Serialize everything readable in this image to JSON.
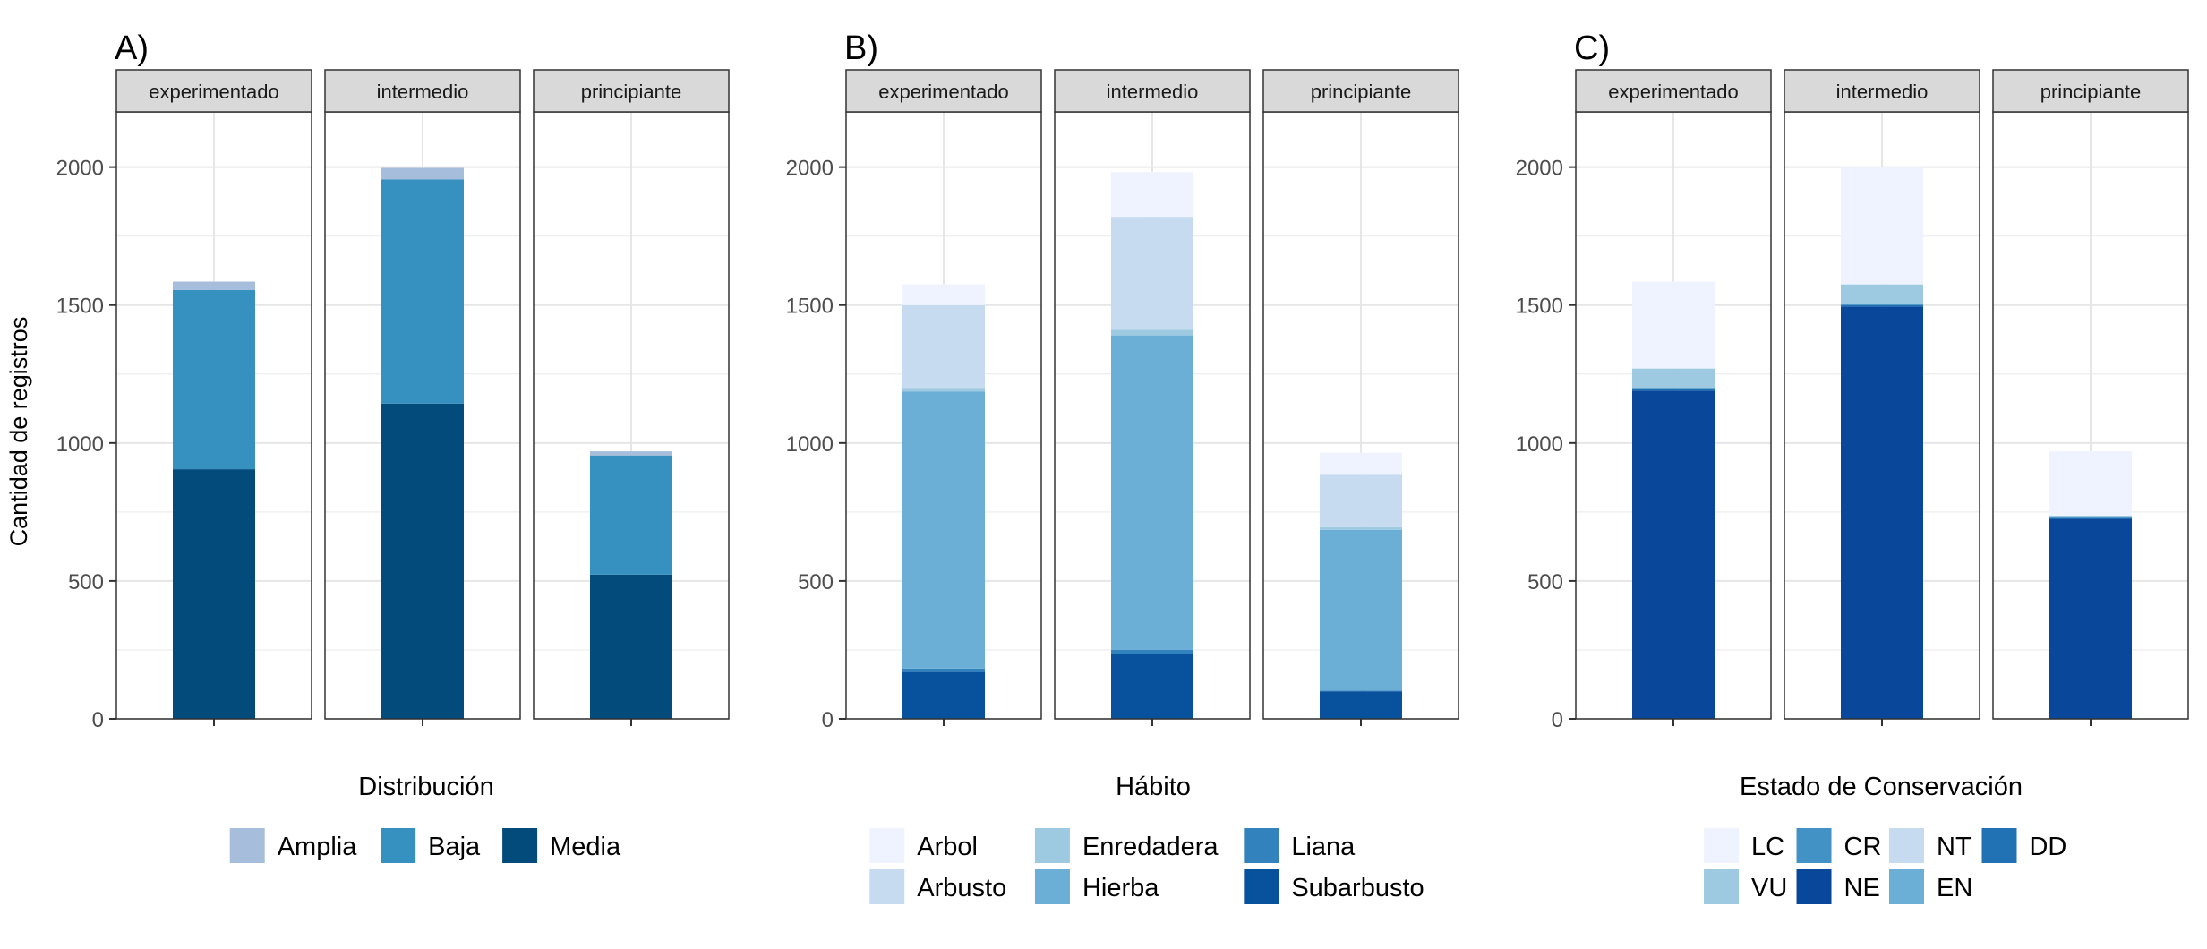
{
  "y_axis_title": "Cantidad de registros",
  "chart_data": [
    {
      "type": "bar",
      "stacked": true,
      "facet_label": "A)",
      "title": "",
      "ylabel": "Cantidad de registros",
      "xlabel": "",
      "ylim": [
        0,
        2200
      ],
      "y_ticks": [
        0,
        500,
        1000,
        1500,
        2000
      ],
      "grid": true,
      "facets": [
        "experimentado",
        "intermedio",
        "principiante"
      ],
      "legend_title": "Distribución",
      "legend_position": "bottom",
      "legend_rows": 1,
      "series": [
        {
          "name": "Media",
          "color": "#024b7a",
          "values": [
            905,
            1143,
            523
          ]
        },
        {
          "name": "Baja",
          "color": "#3690c0",
          "values": [
            650,
            812,
            432
          ]
        },
        {
          "name": "Amplia",
          "color": "#a6bddb",
          "values": [
            30,
            42,
            15
          ]
        }
      ],
      "legend_order": [
        "Amplia",
        "Baja",
        "Media"
      ]
    },
    {
      "type": "bar",
      "stacked": true,
      "facet_label": "B)",
      "title": "",
      "ylabel": "",
      "xlabel": "",
      "ylim": [
        0,
        2200
      ],
      "y_ticks": [
        0,
        500,
        1000,
        1500,
        2000
      ],
      "grid": true,
      "facets": [
        "experimentado",
        "intermedio",
        "principiante"
      ],
      "legend_title": "Hábito",
      "legend_position": "bottom",
      "legend_rows": 2,
      "series": [
        {
          "name": "Subarbusto",
          "color": "#08519c",
          "values": [
            170,
            235,
            100
          ]
        },
        {
          "name": "Liana",
          "color": "#3182bd",
          "values": [
            12,
            15,
            3
          ]
        },
        {
          "name": "Hierba",
          "color": "#6baed6",
          "values": [
            1005,
            1140,
            582
          ]
        },
        {
          "name": "Enredadera",
          "color": "#9ecae1",
          "values": [
            13,
            20,
            10
          ]
        },
        {
          "name": "Arbusto",
          "color": "#c6dbef",
          "values": [
            300,
            410,
            190
          ]
        },
        {
          "name": "Arbol",
          "color": "#eff3ff",
          "values": [
            75,
            162,
            80
          ]
        }
      ],
      "legend_order": [
        "Arbol",
        "Arbusto",
        "Enredadera",
        "Hierba",
        "Liana",
        "Subarbusto"
      ]
    },
    {
      "type": "bar",
      "stacked": true,
      "facet_label": "C)",
      "title": "",
      "ylabel": "",
      "xlabel": "",
      "ylim": [
        0,
        2200
      ],
      "y_ticks": [
        0,
        500,
        1000,
        1500,
        2000
      ],
      "grid": true,
      "facets": [
        "experimentado",
        "intermedio",
        "principiante"
      ],
      "legend_title": "Estado de Conservación",
      "legend_position": "bottom",
      "legend_rows": 2,
      "series": [
        {
          "name": "NE",
          "color": "#08479a",
          "values": [
            1190,
            1495,
            725
          ]
        },
        {
          "name": "DD",
          "color": "#2171b5",
          "values": [
            5,
            5,
            3
          ]
        },
        {
          "name": "CR",
          "color": "#4292c6",
          "values": [
            5,
            3,
            3
          ]
        },
        {
          "name": "EN",
          "color": "#6baed6",
          "values": [
            0,
            0,
            0
          ]
        },
        {
          "name": "VU",
          "color": "#9ecae1",
          "values": [
            70,
            72,
            6
          ]
        },
        {
          "name": "NT",
          "color": "#c6dbef",
          "values": [
            0,
            0,
            0
          ]
        },
        {
          "name": "LC",
          "color": "#eff3ff",
          "values": [
            315,
            425,
            233
          ]
        }
      ],
      "legend_order": [
        "LC",
        "VU",
        "CR",
        "NE",
        "NT",
        "EN",
        "DD"
      ]
    }
  ]
}
